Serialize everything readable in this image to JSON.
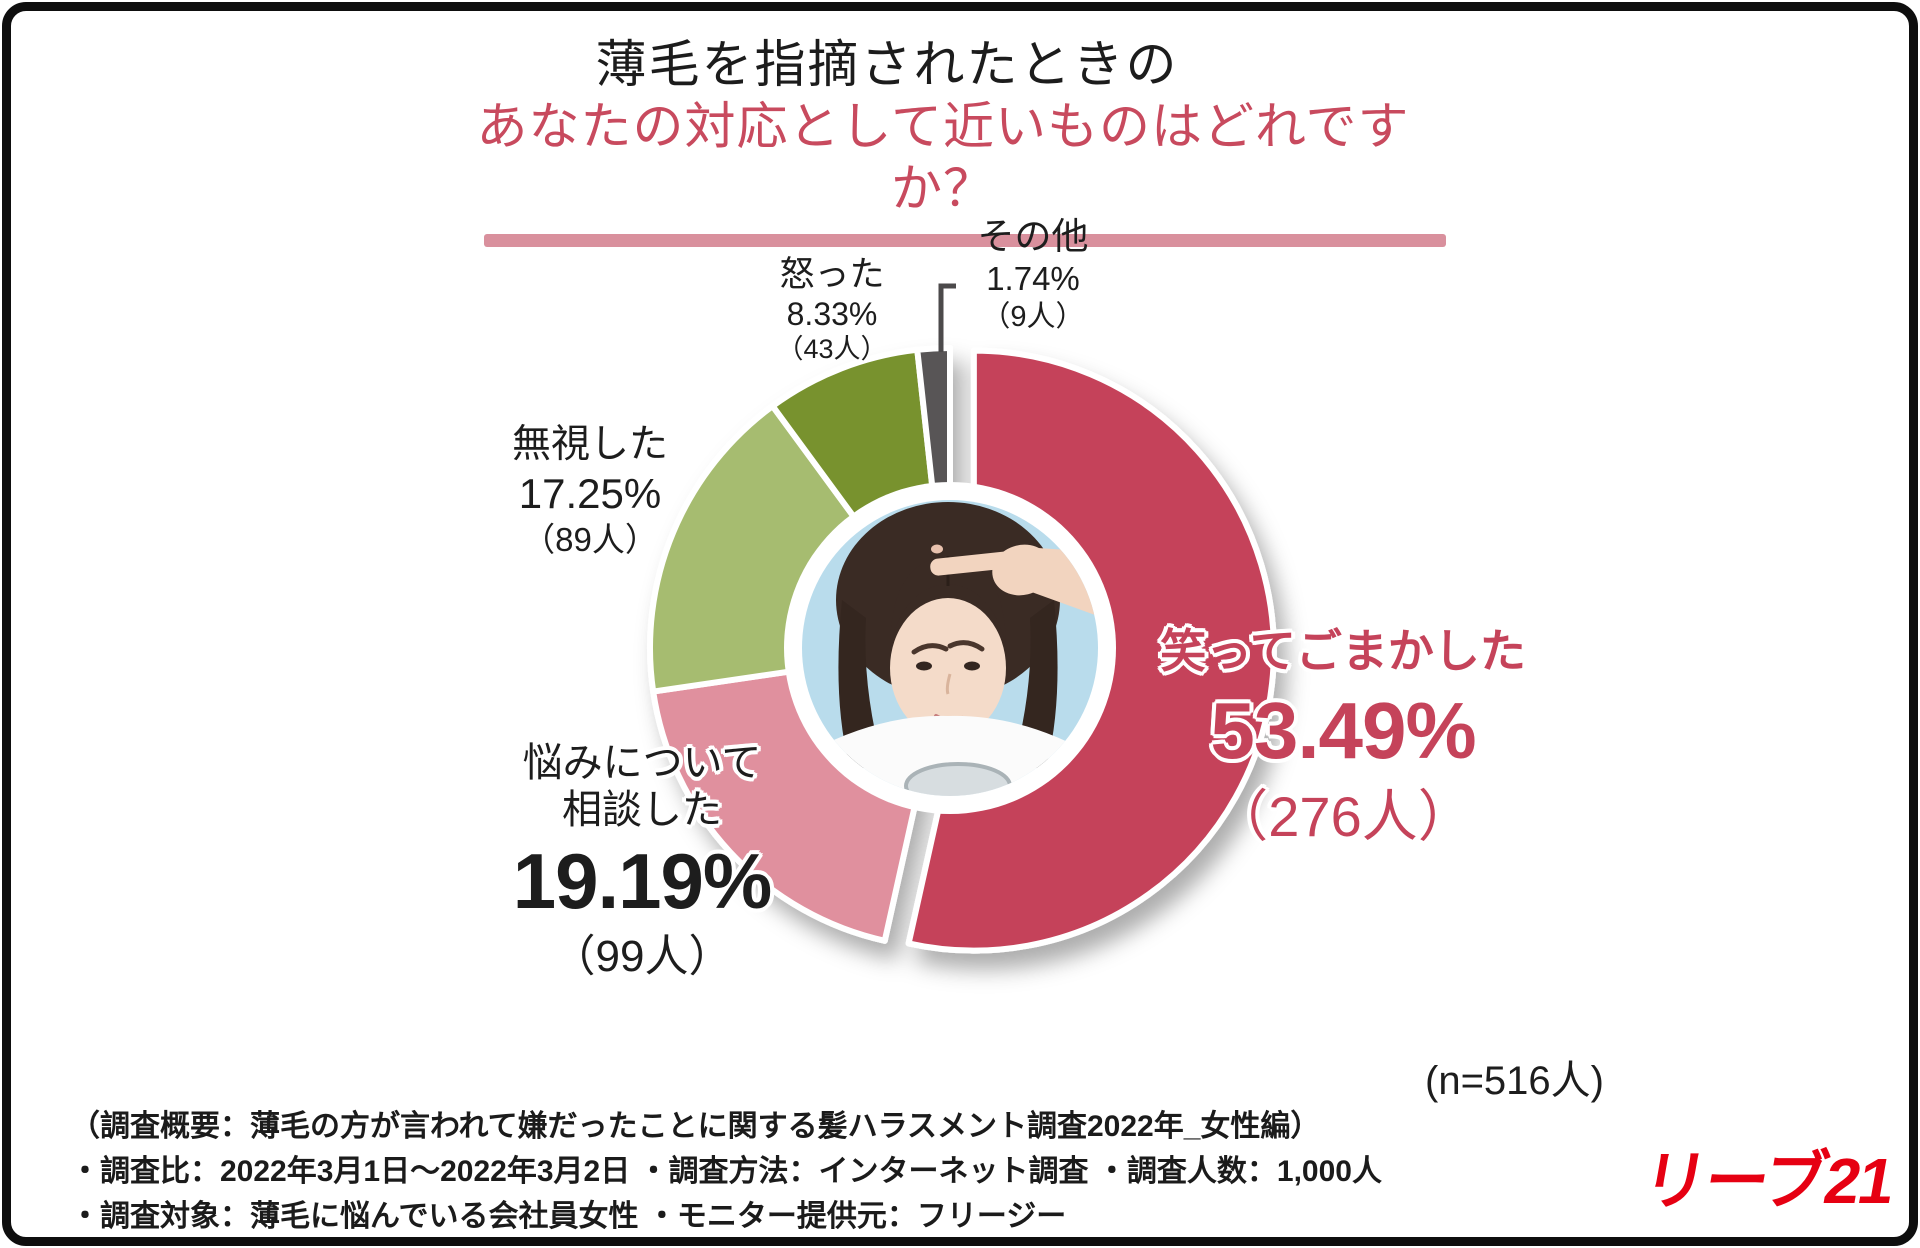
{
  "title": {
    "line1": "薄毛を指摘されたときの",
    "line2": "あなたの対応として近いものはどれですか？",
    "accent_color": "#c84a5e",
    "underline_color": "#d9909d"
  },
  "chart_data": {
    "type": "pie",
    "donut": true,
    "title": "薄毛を指摘されたときの あなたの対応として近いものはどれですか？",
    "start_angle": "top",
    "direction": "clockwise",
    "n": 516,
    "n_label": "(n=516人)",
    "center_image": "woman-pointing-at-thinning-hair",
    "segments": [
      {
        "label": "笑ってごまかした",
        "value": 53.49,
        "percent_label": "53.49%",
        "count": 276,
        "count_label": "（276人）",
        "color": "#c5435a",
        "exploded": true
      },
      {
        "label": "悩みについて相談した",
        "value": 19.19,
        "percent_label": "19.19%",
        "count": 99,
        "count_label": "（99人）",
        "color": "#e0909e",
        "exploded": false
      },
      {
        "label": "無視した",
        "value": 17.25,
        "percent_label": "17.25%",
        "count": 89,
        "count_label": "（89人）",
        "color": "#a6bc6f",
        "exploded": false
      },
      {
        "label": "怒った",
        "value": 8.33,
        "percent_label": "8.33%",
        "count": 43,
        "count_label": "（43人）",
        "color": "#78922f",
        "exploded": false
      },
      {
        "label": "その他",
        "value": 1.74,
        "percent_label": "1.74%",
        "count": 9,
        "count_label": "（9人）",
        "color": "#585556",
        "exploded": false
      }
    ]
  },
  "labels": {
    "nayami_line1": "悩みについて",
    "nayami_line2": "相談した"
  },
  "footer": {
    "notes": [
      "（調査概要：薄毛の方が言われて嫌だったことに関する髪ハラスメント調査2022年_女性編）",
      "・調査比：2022年3月1日～2022年3月2日 ・調査方法：インターネット調査 ・調査人数：1,000人",
      "・調査対象：薄毛に悩んでいる会社員女性 ・モニター提供元：フリージー"
    ],
    "logo": "リーブ21",
    "logo_color": "#e60012"
  }
}
